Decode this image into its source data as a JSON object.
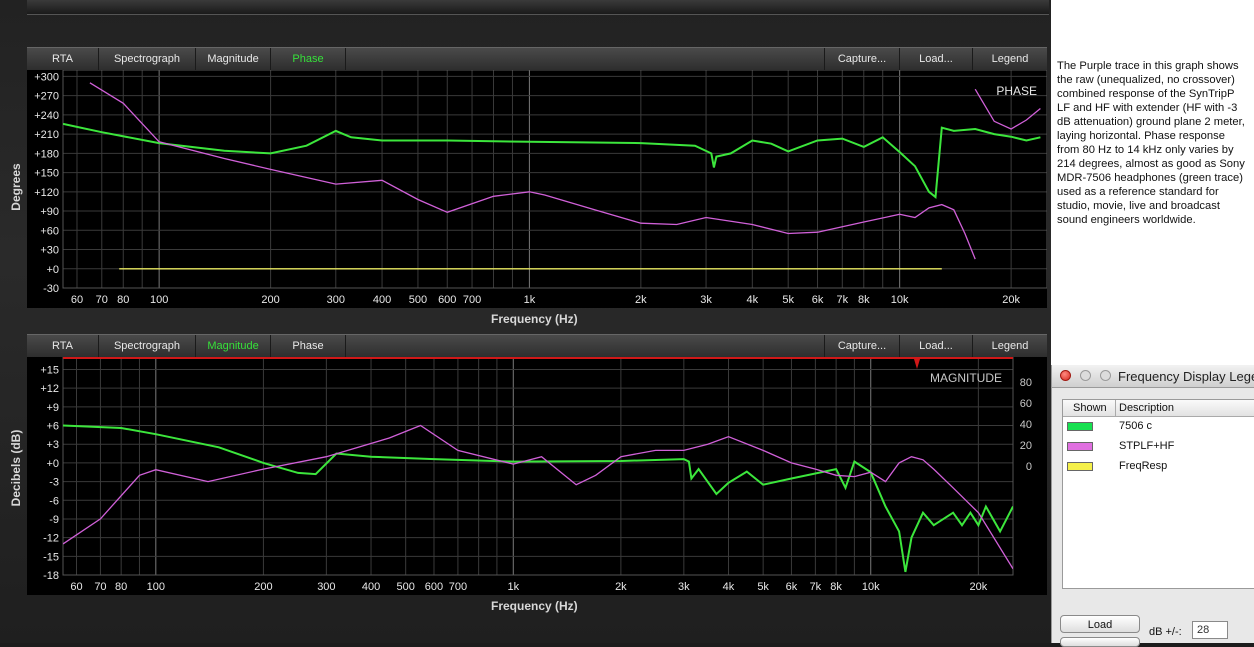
{
  "toolbar_buttons": {
    "rta": "RTA",
    "spectrograph": "Spectrograph",
    "magnitude": "Magnitude",
    "phase": "Phase",
    "capture": "Capture...",
    "load": "Load...",
    "legend": "Legend"
  },
  "phase_panel": {
    "active_tab": "Phase",
    "corner_label": "PHASE",
    "ylabel": "Degrees",
    "xlabel": "Frequency (Hz)"
  },
  "magnitude_panel": {
    "active_tab": "Magnitude",
    "corner_label": "MAGNITUDE",
    "ylabel": "Decibels (dB)",
    "xlabel": "Frequency (Hz)",
    "right_axis_ticks": [
      "80",
      "60",
      "40",
      "20",
      "0"
    ]
  },
  "description": "The Purple trace in this graph shows the raw (unequalized, no crossover) combined response of the SynTripP LF and HF with extender (HF with -3 dB attenuation) ground plane 2 meter, laying horizontal. Phase response from 80 Hz to 14 kHz only varies by 214 degrees, almost as good as Sony MDR-7506 headphones (green trace) used as a reference standard for studio, movie, live and broadcast sound engineers worldwide.",
  "legend_window": {
    "title": "Frequency Display Legend",
    "col_shown": "Shown",
    "col_description": "Description",
    "rows": [
      {
        "color": "#17e050",
        "label": "7506 c"
      },
      {
        "color": "#e070e0",
        "label": "STPLF+HF"
      },
      {
        "color": "#f5f04a",
        "label": "FreqResp"
      }
    ],
    "load_button": "Load",
    "db_label": "dB +/-:",
    "db_value": "28"
  },
  "colors": {
    "green_trace": "#3ce63c",
    "purple_trace": "#d060d8",
    "yellow_trace": "#e8e860",
    "active_tab": "#36e03a"
  },
  "chart_data": [
    {
      "type": "line",
      "xscale": "log",
      "xlim": [
        55,
        25000
      ],
      "ylim": [
        -30,
        310
      ],
      "yticks": [
        "+300",
        "+270",
        "+240",
        "+210",
        "+180",
        "+150",
        "+120",
        "+90",
        "+60",
        "+30",
        "+0",
        "-30"
      ],
      "xtick_labels": [
        [
          60,
          "60"
        ],
        [
          70,
          "70"
        ],
        [
          80,
          "80"
        ],
        [
          100,
          "100"
        ],
        [
          200,
          "200"
        ],
        [
          300,
          "300"
        ],
        [
          400,
          "400"
        ],
        [
          500,
          "500"
        ],
        [
          600,
          "600"
        ],
        [
          700,
          "700"
        ],
        [
          1000,
          "1k"
        ],
        [
          2000,
          "2k"
        ],
        [
          3000,
          "3k"
        ],
        [
          4000,
          "4k"
        ],
        [
          5000,
          "5k"
        ],
        [
          6000,
          "6k"
        ],
        [
          7000,
          "7k"
        ],
        [
          8000,
          "8k"
        ],
        [
          10000,
          "10k"
        ],
        [
          20000,
          "20k"
        ]
      ],
      "series": [
        {
          "color": "#3ce63c",
          "points": [
            [
              55,
              226
            ],
            [
              70,
              213
            ],
            [
              100,
              196
            ],
            [
              150,
              184
            ],
            [
              200,
              180
            ],
            [
              250,
              192
            ],
            [
              300,
              215
            ],
            [
              330,
              205
            ],
            [
              400,
              200
            ],
            [
              600,
              200
            ],
            [
              1000,
              198
            ],
            [
              2000,
              196
            ],
            [
              2800,
              192
            ],
            [
              3100,
              180
            ],
            [
              3150,
              158
            ],
            [
              3200,
              175
            ],
            [
              3500,
              180
            ],
            [
              4000,
              200
            ],
            [
              4500,
              195
            ],
            [
              5000,
              183
            ],
            [
              6000,
              200
            ],
            [
              7000,
              203
            ],
            [
              8000,
              190
            ],
            [
              9000,
              205
            ],
            [
              10000,
              182
            ],
            [
              11000,
              160
            ],
            [
              12000,
              120
            ],
            [
              12500,
              112
            ],
            [
              13000,
              220
            ],
            [
              14000,
              215
            ],
            [
              16000,
              218
            ],
            [
              18000,
              210
            ],
            [
              20000,
              206
            ],
            [
              22000,
              200
            ],
            [
              24000,
              205
            ]
          ]
        },
        {
          "color": "#d060d8",
          "points": [
            [
              65,
              290
            ],
            [
              80,
              258
            ],
            [
              100,
              198
            ],
            [
              150,
              172
            ],
            [
              200,
              155
            ],
            [
              300,
              132
            ],
            [
              400,
              138
            ],
            [
              500,
              108
            ],
            [
              600,
              88
            ],
            [
              800,
              113
            ],
            [
              1000,
              120
            ],
            [
              1100,
              115
            ],
            [
              1500,
              92
            ],
            [
              2000,
              71
            ],
            [
              2500,
              69
            ],
            [
              3000,
              80
            ],
            [
              4000,
              69
            ],
            [
              5000,
              55
            ],
            [
              6000,
              57
            ],
            [
              8000,
              73
            ],
            [
              10000,
              85
            ],
            [
              11000,
              80
            ],
            [
              12000,
              95
            ],
            [
              13000,
              100
            ],
            [
              14000,
              92
            ],
            [
              15000,
              55
            ],
            [
              16000,
              15
            ],
            [
              16000,
              280
            ],
            [
              18000,
              230
            ],
            [
              20000,
              218
            ],
            [
              22000,
              232
            ],
            [
              24000,
              250
            ]
          ]
        },
        {
          "color": "#e8e860",
          "points": [
            [
              78,
              0
            ],
            [
              13000,
              0
            ]
          ]
        }
      ]
    },
    {
      "type": "line",
      "xscale": "log",
      "xlim": [
        55,
        25000
      ],
      "ylim": [
        -18,
        17
      ],
      "yticks": [
        "+15",
        "+12",
        "+9",
        "+6",
        "+3",
        "+0",
        "-3",
        "-6",
        "-9",
        "-12",
        "-15",
        "-18"
      ],
      "xtick_labels": [
        [
          60,
          "60"
        ],
        [
          70,
          "70"
        ],
        [
          80,
          "80"
        ],
        [
          100,
          "100"
        ],
        [
          200,
          "200"
        ],
        [
          300,
          "300"
        ],
        [
          400,
          "400"
        ],
        [
          500,
          "500"
        ],
        [
          600,
          "600"
        ],
        [
          700,
          "700"
        ],
        [
          1000,
          "1k"
        ],
        [
          2000,
          "2k"
        ],
        [
          3000,
          "3k"
        ],
        [
          4000,
          "4k"
        ],
        [
          5000,
          "5k"
        ],
        [
          6000,
          "6k"
        ],
        [
          7000,
          "7k"
        ],
        [
          8000,
          "8k"
        ],
        [
          10000,
          "10k"
        ],
        [
          20000,
          "20k"
        ]
      ],
      "series": [
        {
          "color": "#3ce63c",
          "points": [
            [
              55,
              6
            ],
            [
              80,
              5.6
            ],
            [
              100,
              4.6
            ],
            [
              150,
              2.5
            ],
            [
              200,
              0
            ],
            [
              250,
              -1.6
            ],
            [
              280,
              -1.8
            ],
            [
              320,
              1.5
            ],
            [
              400,
              1.0
            ],
            [
              600,
              0.6
            ],
            [
              1000,
              0.2
            ],
            [
              2000,
              0.3
            ],
            [
              3000,
              0.6
            ],
            [
              3100,
              0.2
            ],
            [
              3150,
              -2.5
            ],
            [
              3300,
              -1
            ],
            [
              3700,
              -5
            ],
            [
              4000,
              -3.2
            ],
            [
              4500,
              -1.4
            ],
            [
              5000,
              -3.5
            ],
            [
              6000,
              -2.5
            ],
            [
              8000,
              -1
            ],
            [
              8500,
              -4
            ],
            [
              9000,
              0.2
            ],
            [
              10000,
              -1.5
            ],
            [
              11000,
              -7
            ],
            [
              12000,
              -11
            ],
            [
              12500,
              -17.5
            ],
            [
              13000,
              -12
            ],
            [
              14000,
              -8
            ],
            [
              15000,
              -10
            ],
            [
              17000,
              -8
            ],
            [
              18000,
              -10
            ],
            [
              19000,
              -8
            ],
            [
              20000,
              -10
            ],
            [
              21000,
              -7
            ],
            [
              23000,
              -11
            ],
            [
              25000,
              -7
            ]
          ]
        },
        {
          "color": "#d060d8",
          "points": [
            [
              55,
              -13
            ],
            [
              70,
              -9
            ],
            [
              90,
              -2
            ],
            [
              100,
              -1.1
            ],
            [
              140,
              -3
            ],
            [
              200,
              -1
            ],
            [
              300,
              1
            ],
            [
              450,
              4
            ],
            [
              550,
              6
            ],
            [
              700,
              2
            ],
            [
              1000,
              -0.2
            ],
            [
              1200,
              1
            ],
            [
              1500,
              -3.5
            ],
            [
              1700,
              -2
            ],
            [
              2000,
              1
            ],
            [
              2500,
              2
            ],
            [
              3000,
              2
            ],
            [
              3500,
              3
            ],
            [
              4000,
              4.2
            ],
            [
              5000,
              2
            ],
            [
              6000,
              0
            ],
            [
              7000,
              -1
            ],
            [
              8000,
              -2
            ],
            [
              9000,
              -2.2
            ],
            [
              10000,
              -1.5
            ],
            [
              11000,
              -3
            ],
            [
              12000,
              0
            ],
            [
              13000,
              1
            ],
            [
              14000,
              0.5
            ],
            [
              15000,
              -1
            ],
            [
              17000,
              -4
            ],
            [
              20000,
              -8
            ],
            [
              25000,
              -17
            ]
          ]
        }
      ]
    }
  ]
}
